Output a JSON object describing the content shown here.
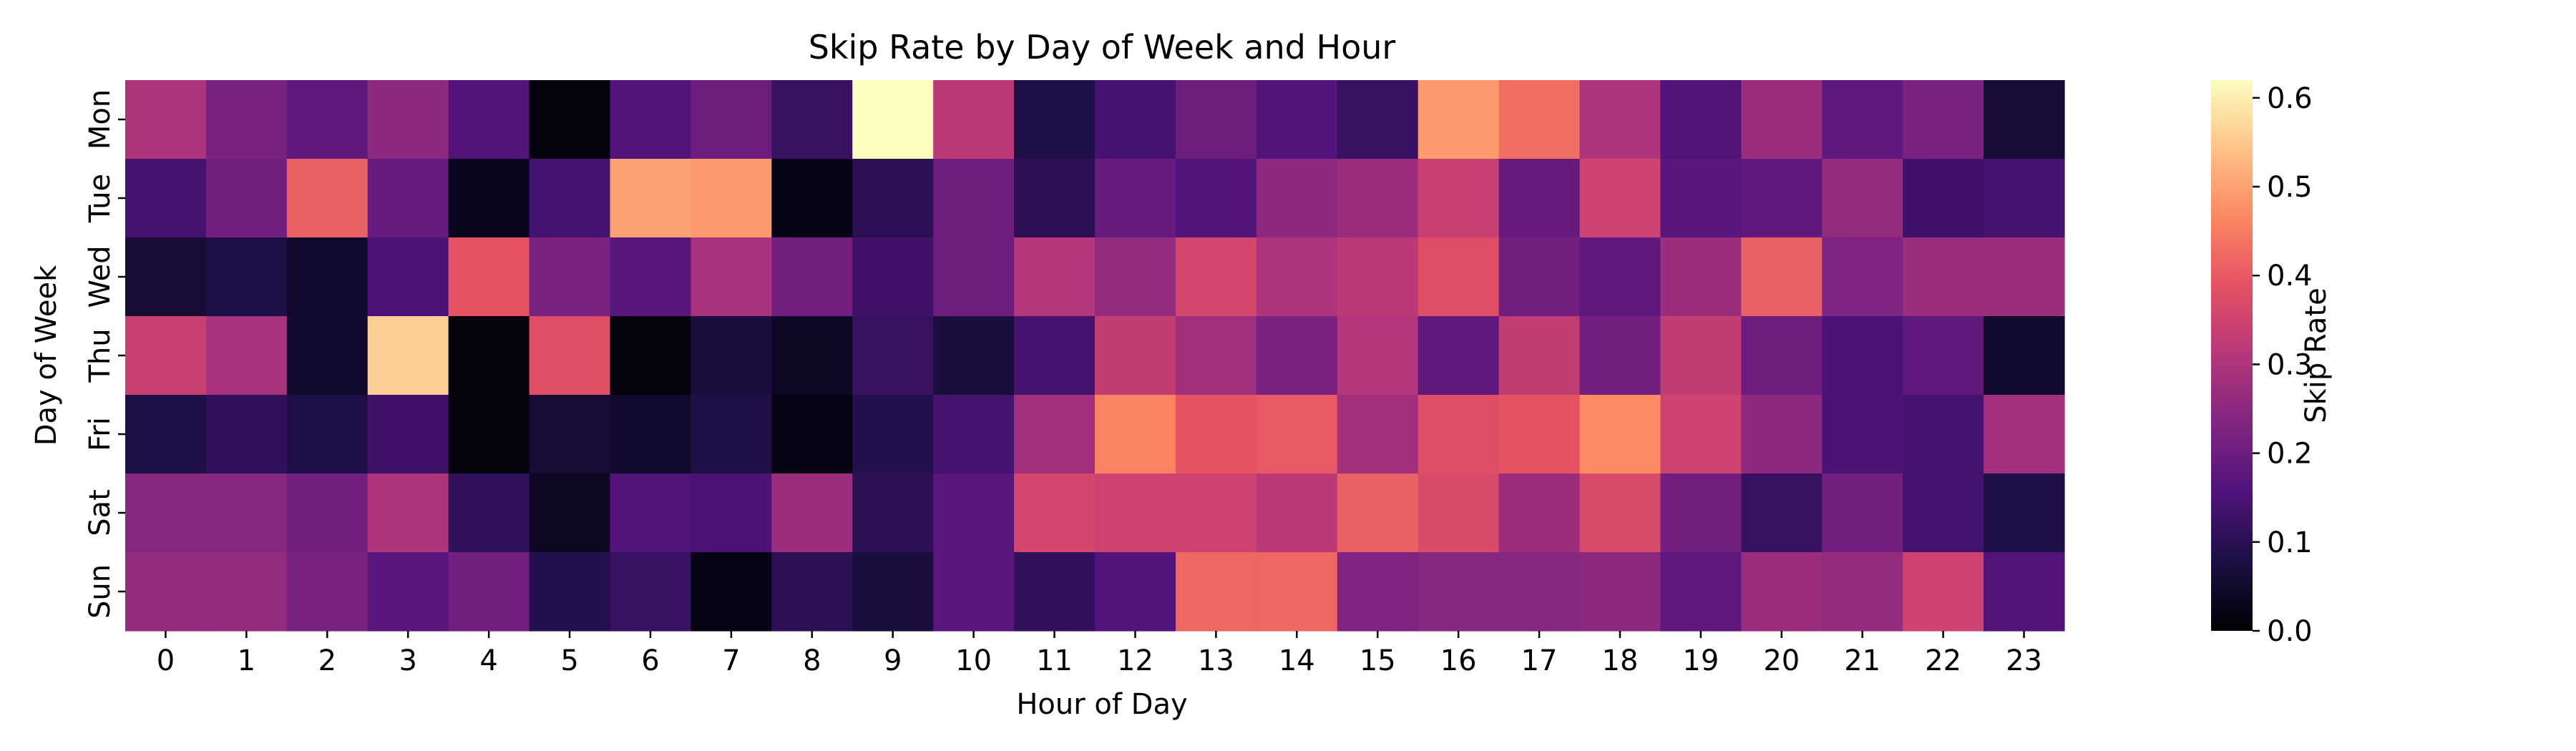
{
  "chart_data": {
    "type": "heatmap",
    "title": "Skip Rate by Day of Week and Hour",
    "xlabel": "Hour of Day",
    "ylabel": "Day of Week",
    "x_categories": [
      "0",
      "1",
      "2",
      "3",
      "4",
      "5",
      "6",
      "7",
      "8",
      "9",
      "10",
      "11",
      "12",
      "13",
      "14",
      "15",
      "16",
      "17",
      "18",
      "19",
      "20",
      "21",
      "22",
      "23"
    ],
    "y_categories": [
      "Mon",
      "Tue",
      "Wed",
      "Thu",
      "Fri",
      "Sat",
      "Sun"
    ],
    "values": [
      [
        0.3,
        0.22,
        0.18,
        0.25,
        0.16,
        0.01,
        0.16,
        0.2,
        0.12,
        0.62,
        0.32,
        0.08,
        0.14,
        0.2,
        0.16,
        0.12,
        0.49,
        0.43,
        0.3,
        0.16,
        0.27,
        0.18,
        0.22,
        0.06
      ],
      [
        0.14,
        0.21,
        0.41,
        0.19,
        0.03,
        0.14,
        0.5,
        0.49,
        0.02,
        0.1,
        0.2,
        0.1,
        0.19,
        0.16,
        0.25,
        0.27,
        0.34,
        0.19,
        0.35,
        0.17,
        0.18,
        0.26,
        0.13,
        0.14
      ],
      [
        0.06,
        0.08,
        0.05,
        0.15,
        0.39,
        0.22,
        0.17,
        0.29,
        0.21,
        0.13,
        0.2,
        0.31,
        0.26,
        0.36,
        0.3,
        0.32,
        0.38,
        0.21,
        0.18,
        0.27,
        0.41,
        0.23,
        0.27,
        0.27
      ],
      [
        0.34,
        0.29,
        0.05,
        0.56,
        0.01,
        0.38,
        0.01,
        0.07,
        0.04,
        0.12,
        0.07,
        0.14,
        0.33,
        0.28,
        0.22,
        0.31,
        0.18,
        0.33,
        0.21,
        0.33,
        0.2,
        0.15,
        0.18,
        0.05
      ],
      [
        0.08,
        0.11,
        0.08,
        0.13,
        0.01,
        0.06,
        0.05,
        0.08,
        0.02,
        0.09,
        0.14,
        0.28,
        0.46,
        0.39,
        0.4,
        0.28,
        0.38,
        0.39,
        0.47,
        0.35,
        0.25,
        0.15,
        0.14,
        0.28
      ],
      [
        0.24,
        0.24,
        0.21,
        0.3,
        0.11,
        0.04,
        0.16,
        0.15,
        0.27,
        0.1,
        0.17,
        0.36,
        0.35,
        0.35,
        0.32,
        0.41,
        0.37,
        0.27,
        0.37,
        0.21,
        0.12,
        0.21,
        0.14,
        0.08
      ],
      [
        0.26,
        0.26,
        0.22,
        0.17,
        0.21,
        0.09,
        0.12,
        0.02,
        0.1,
        0.07,
        0.17,
        0.11,
        0.16,
        0.42,
        0.42,
        0.23,
        0.24,
        0.24,
        0.25,
        0.18,
        0.27,
        0.26,
        0.35,
        0.16
      ]
    ],
    "vmin": 0.0,
    "vmax": 0.62,
    "colormap": "magma",
    "colorbar": {
      "label": "Skip Rate",
      "ticks": [
        0.0,
        0.1,
        0.2,
        0.3,
        0.4,
        0.5,
        0.6
      ],
      "tick_labels": [
        "0.0",
        "0.1",
        "0.2",
        "0.3",
        "0.4",
        "0.5",
        "0.6"
      ]
    }
  }
}
